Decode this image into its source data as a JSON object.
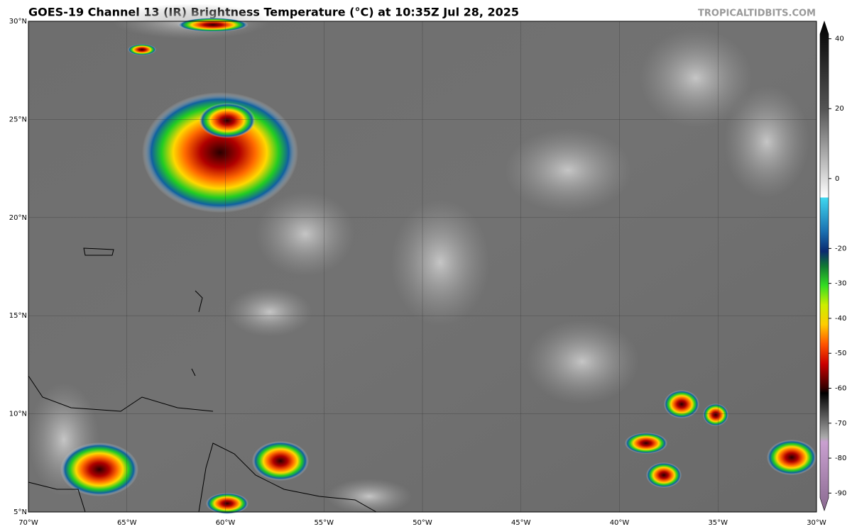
{
  "header": {
    "title": "GOES-19 Channel 13 (IR) Brightness Temperature (°C) at 10:35Z Jul 28, 2025",
    "credit": "TROPICALTIDBITS.COM"
  },
  "map": {
    "lon_labels": [
      "70°W",
      "65°W",
      "60°W",
      "55°W",
      "50°W",
      "45°W",
      "40°W",
      "35°W",
      "30°W"
    ],
    "lat_labels": [
      "30°N",
      "25°N",
      "20°N",
      "15°N",
      "10°N",
      "5°N"
    ]
  },
  "colorbar": {
    "lim": [
      45,
      -95
    ],
    "ticks": [
      40,
      20,
      0,
      -20,
      -30,
      -40,
      -50,
      -60,
      -70,
      -80,
      -90
    ]
  }
}
